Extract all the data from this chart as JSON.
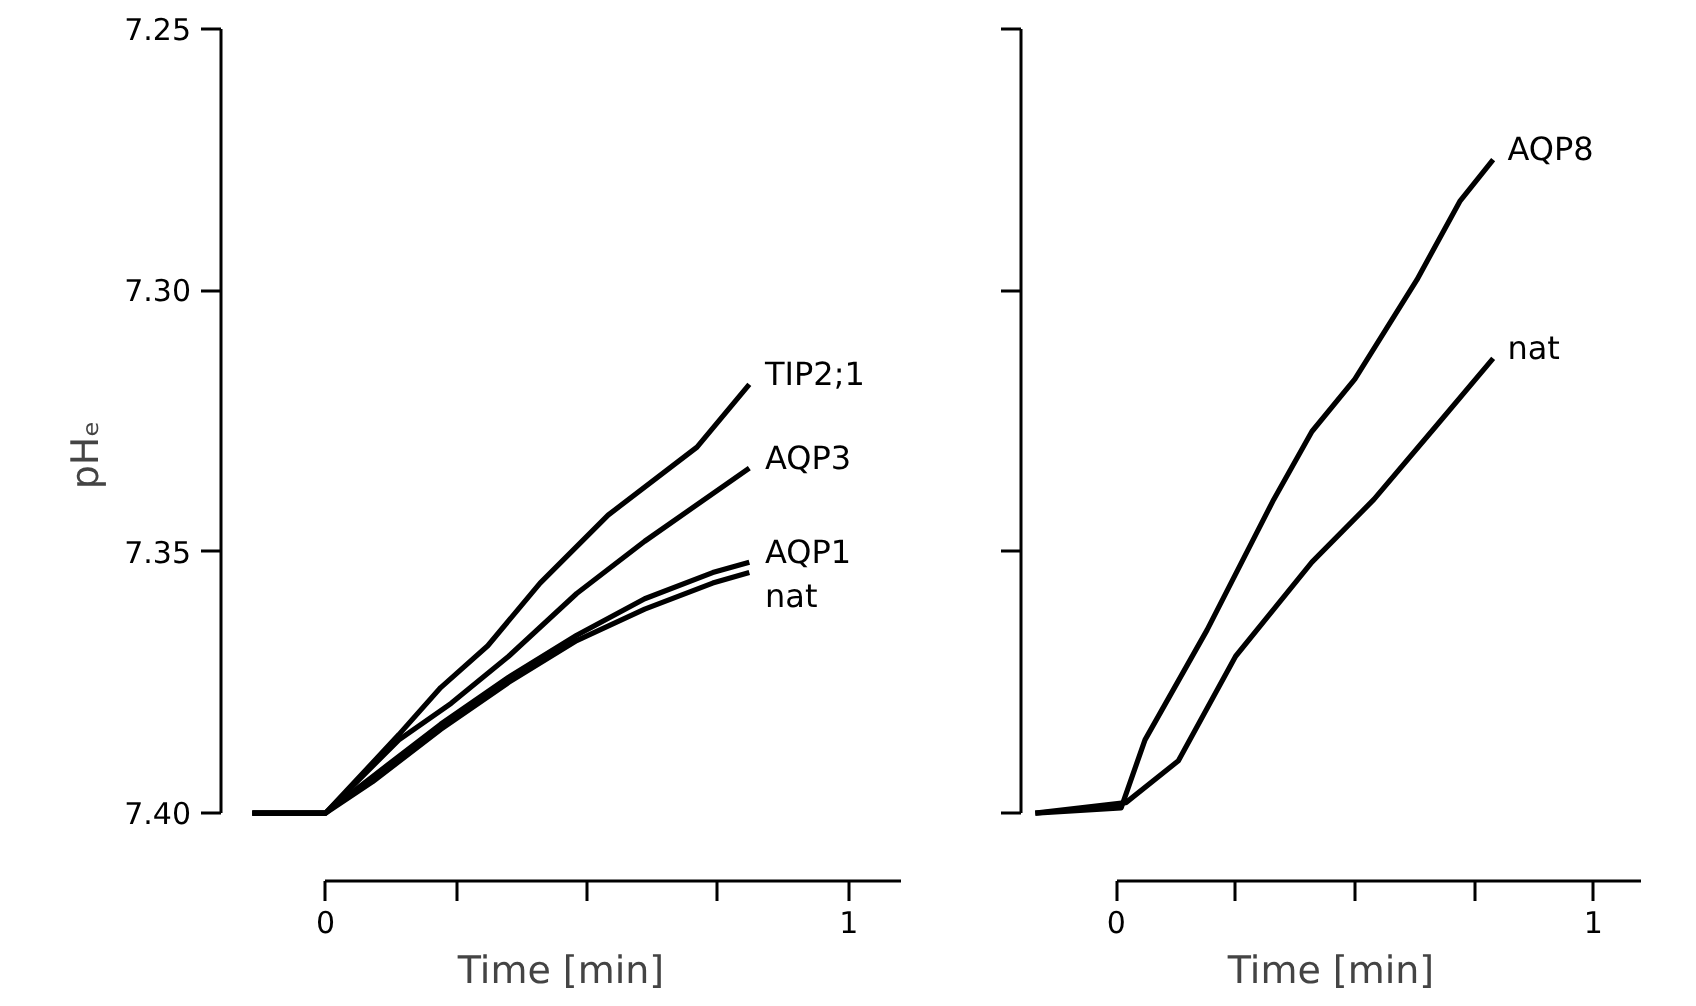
{
  "chart_data": [
    {
      "type": "line",
      "xlabel": "Time [min]",
      "ylabel": "pHₑ",
      "xlim": [
        -0.2,
        1.1
      ],
      "ylim": [
        7.413,
        7.25
      ],
      "xticks": [
        {
          "value": 0,
          "label": "0"
        },
        {
          "value": 0.25,
          "label": null
        },
        {
          "value": 0.5,
          "label": null
        },
        {
          "value": 0.75,
          "label": null
        },
        {
          "value": 1,
          "label": "1"
        }
      ],
      "yticks": [
        {
          "value": 7.25,
          "label": "7.25"
        },
        {
          "value": 7.3,
          "label": "7.30"
        },
        {
          "value": 7.35,
          "label": "7.35"
        },
        {
          "value": 7.4,
          "label": "7.40"
        }
      ],
      "grid": false,
      "series": [
        {
          "name": "TIP2;1",
          "color": "#000000",
          "x": [
            -0.14,
            0,
            0.14,
            0.22,
            0.31,
            0.41,
            0.54,
            0.71,
            0.81
          ],
          "values": [
            7.4,
            7.4,
            7.385,
            7.376,
            7.368,
            7.356,
            7.343,
            7.33,
            7.318
          ]
        },
        {
          "name": "AQP3",
          "color": "#000000",
          "x": [
            -0.14,
            0,
            0.14,
            0.24,
            0.35,
            0.48,
            0.61,
            0.81
          ],
          "values": [
            7.4,
            7.4,
            7.386,
            7.379,
            7.37,
            7.358,
            7.348,
            7.334
          ]
        },
        {
          "name": "AQP1",
          "color": "#000000",
          "x": [
            -0.14,
            0,
            0.09,
            0.22,
            0.35,
            0.48,
            0.61,
            0.74,
            0.81
          ],
          "values": [
            7.4,
            7.4,
            7.393,
            7.383,
            7.374,
            7.366,
            7.359,
            7.354,
            7.352
          ]
        },
        {
          "name": "nat",
          "color": "#000000",
          "x": [
            -0.14,
            0,
            0.09,
            0.22,
            0.35,
            0.48,
            0.61,
            0.74,
            0.81
          ],
          "values": [
            7.4,
            7.4,
            7.394,
            7.384,
            7.375,
            7.367,
            7.361,
            7.356,
            7.354
          ]
        }
      ]
    },
    {
      "type": "line",
      "xlabel": "Time [min]",
      "xlim": [
        -0.2,
        1.1
      ],
      "ylim": [
        7.413,
        7.25
      ],
      "xticks": [
        {
          "value": 0,
          "label": "0"
        },
        {
          "value": 0.25,
          "label": null
        },
        {
          "value": 0.5,
          "label": null
        },
        {
          "value": 0.75,
          "label": null
        },
        {
          "value": 1,
          "label": "1"
        }
      ],
      "yticks": [
        7.25,
        7.3,
        7.35,
        7.4
      ],
      "tick_labels": "x",
      "grid": false,
      "series": [
        {
          "name": "AQP8",
          "color": "#000000",
          "x": [
            -0.17,
            0.01,
            0.06,
            0.19,
            0.33,
            0.41,
            0.5,
            0.63,
            0.72,
            0.79
          ],
          "values": [
            7.4,
            7.399,
            7.386,
            7.365,
            7.34,
            7.327,
            7.317,
            7.298,
            7.283,
            7.275
          ]
        },
        {
          "name": "nat",
          "color": "#000000",
          "x": [
            -0.17,
            0.02,
            0.13,
            0.25,
            0.41,
            0.54,
            0.67,
            0.79
          ],
          "values": [
            7.4,
            7.398,
            7.39,
            7.37,
            7.352,
            7.34,
            7.326,
            7.313
          ]
        }
      ]
    }
  ]
}
